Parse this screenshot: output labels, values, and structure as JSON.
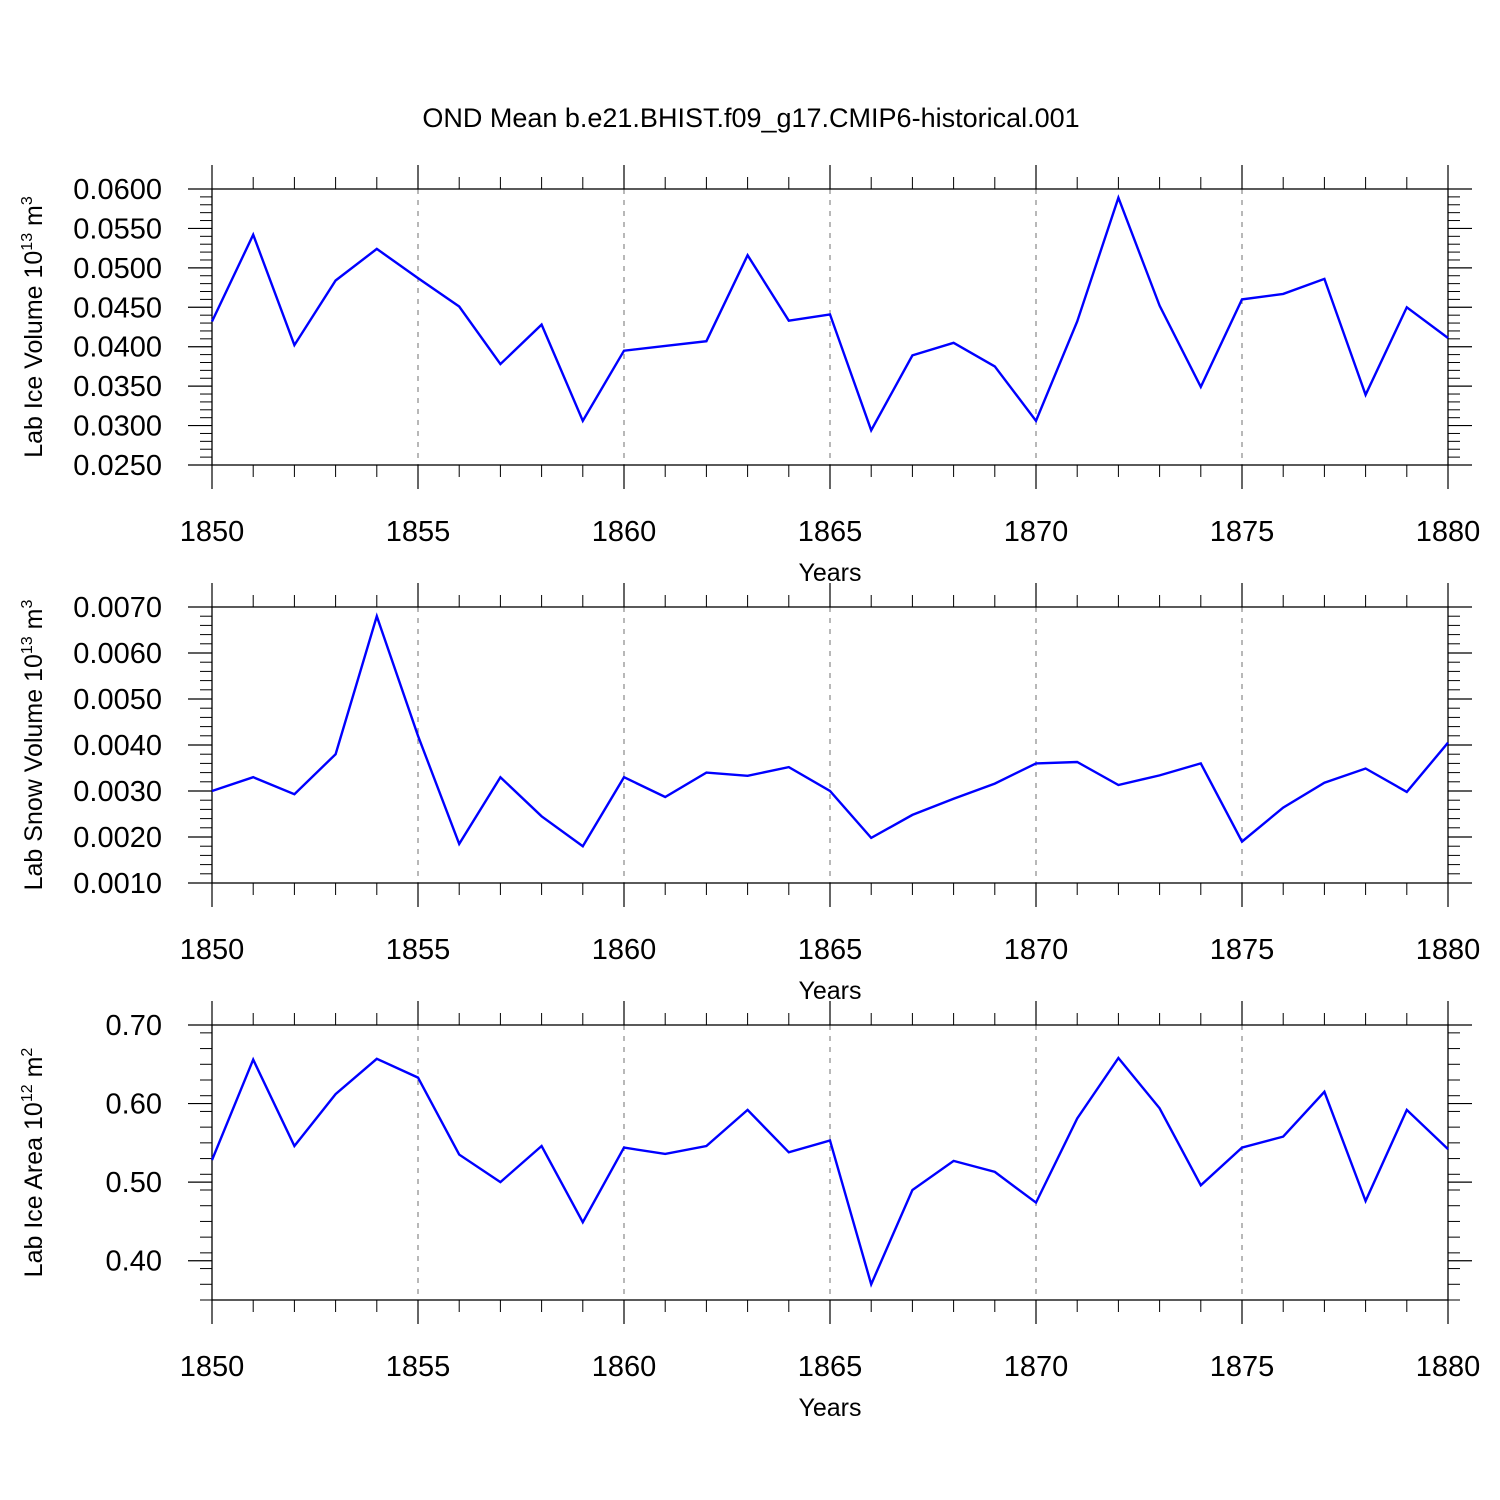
{
  "figure_title": "OND Mean b.e21.BHIST.f09_g17.CMIP6-historical.001",
  "chart_data": [
    {
      "type": "line",
      "ylabel": "Lab Ice Volume 10",
      "ylabel_exp": "13",
      "ylabel_unit": " m",
      "ylabel_unit_exp": "3",
      "xlabel": "Years",
      "xlim": [
        1850,
        1880
      ],
      "ylim": [
        0.025,
        0.06
      ],
      "yticks": [
        "0.0600",
        "0.0550",
        "0.0500",
        "0.0450",
        "0.0400",
        "0.0350",
        "0.0300",
        "0.0250"
      ],
      "ytick_values": [
        0.06,
        0.055,
        0.05,
        0.045,
        0.04,
        0.035,
        0.03,
        0.025
      ],
      "xticks": [
        "1850",
        "1855",
        "1860",
        "1865",
        "1870",
        "1875",
        "1880"
      ],
      "xtick_values": [
        1850,
        1855,
        1860,
        1865,
        1870,
        1875,
        1880
      ],
      "grid": "vertical dashed at major x ticks",
      "series_color": "#0000ff",
      "x": [
        1850,
        1851,
        1852,
        1853,
        1854,
        1855,
        1856,
        1857,
        1858,
        1859,
        1860,
        1861,
        1862,
        1863,
        1864,
        1865,
        1866,
        1867,
        1868,
        1869,
        1870,
        1871,
        1872,
        1873,
        1874,
        1875,
        1876,
        1877,
        1878,
        1879,
        1880
      ],
      "values": [
        0.0432,
        0.0542,
        0.0402,
        0.0484,
        0.0524,
        0.0487,
        0.0451,
        0.0378,
        0.0428,
        0.0306,
        0.0395,
        0.0401,
        0.0407,
        0.0516,
        0.0433,
        0.0441,
        0.0294,
        0.0389,
        0.0405,
        0.0375,
        0.0306,
        0.0432,
        0.0589,
        0.0452,
        0.0349,
        0.046,
        0.0467,
        0.0486,
        0.0339,
        0.045,
        0.0411
      ]
    },
    {
      "type": "line",
      "ylabel": "Lab Snow Volume 10",
      "ylabel_exp": "13",
      "ylabel_unit": " m",
      "ylabel_unit_exp": "3",
      "xlabel": "Years",
      "xlim": [
        1850,
        1880
      ],
      "ylim": [
        0.001,
        0.007
      ],
      "yticks": [
        "0.0070",
        "0.0060",
        "0.0050",
        "0.0040",
        "0.0030",
        "0.0020",
        "0.0010"
      ],
      "ytick_values": [
        0.007,
        0.006,
        0.005,
        0.004,
        0.003,
        0.002,
        0.001
      ],
      "xticks": [
        "1850",
        "1855",
        "1860",
        "1865",
        "1870",
        "1875",
        "1880"
      ],
      "xtick_values": [
        1850,
        1855,
        1860,
        1865,
        1870,
        1875,
        1880
      ],
      "grid": "vertical dashed at major x ticks",
      "series_color": "#0000ff",
      "x": [
        1850,
        1851,
        1852,
        1853,
        1854,
        1855,
        1856,
        1857,
        1858,
        1859,
        1860,
        1861,
        1862,
        1863,
        1864,
        1865,
        1866,
        1867,
        1868,
        1869,
        1870,
        1871,
        1872,
        1873,
        1874,
        1875,
        1876,
        1877,
        1878,
        1879,
        1880
      ],
      "values": [
        0.003,
        0.0033,
        0.00293,
        0.0038,
        0.0068,
        0.0042,
        0.00185,
        0.0033,
        0.00245,
        0.0018,
        0.0033,
        0.00287,
        0.0034,
        0.00333,
        0.00352,
        0.003,
        0.00198,
        0.00248,
        0.00283,
        0.00316,
        0.0036,
        0.00363,
        0.00313,
        0.00334,
        0.0036,
        0.0019,
        0.00264,
        0.00318,
        0.00349,
        0.00298,
        0.00405
      ]
    },
    {
      "type": "line",
      "ylabel": "Lab Ice Area 10",
      "ylabel_exp": "12",
      "ylabel_unit": " m",
      "ylabel_unit_exp": "2",
      "xlabel": "Years",
      "xlim": [
        1850,
        1880
      ],
      "ylim": [
        0.35,
        0.7
      ],
      "yticks": [
        "0.70",
        "0.60",
        "0.50",
        "0.40"
      ],
      "ytick_values": [
        0.7,
        0.6,
        0.5,
        0.4
      ],
      "xticks": [
        "1850",
        "1855",
        "1860",
        "1865",
        "1870",
        "1875",
        "1880"
      ],
      "xtick_values": [
        1850,
        1855,
        1860,
        1865,
        1870,
        1875,
        1880
      ],
      "grid": "vertical dashed at major x ticks",
      "series_color": "#0000ff",
      "x": [
        1850,
        1851,
        1852,
        1853,
        1854,
        1855,
        1856,
        1857,
        1858,
        1859,
        1860,
        1861,
        1862,
        1863,
        1864,
        1865,
        1866,
        1867,
        1868,
        1869,
        1870,
        1871,
        1872,
        1873,
        1874,
        1875,
        1876,
        1877,
        1878,
        1879,
        1880
      ],
      "values": [
        0.528,
        0.656,
        0.546,
        0.612,
        0.657,
        0.633,
        0.535,
        0.5,
        0.546,
        0.449,
        0.544,
        0.536,
        0.546,
        0.592,
        0.538,
        0.553,
        0.37,
        0.49,
        0.527,
        0.513,
        0.474,
        0.581,
        0.658,
        0.594,
        0.496,
        0.544,
        0.558,
        0.615,
        0.476,
        0.592,
        0.542
      ]
    }
  ]
}
